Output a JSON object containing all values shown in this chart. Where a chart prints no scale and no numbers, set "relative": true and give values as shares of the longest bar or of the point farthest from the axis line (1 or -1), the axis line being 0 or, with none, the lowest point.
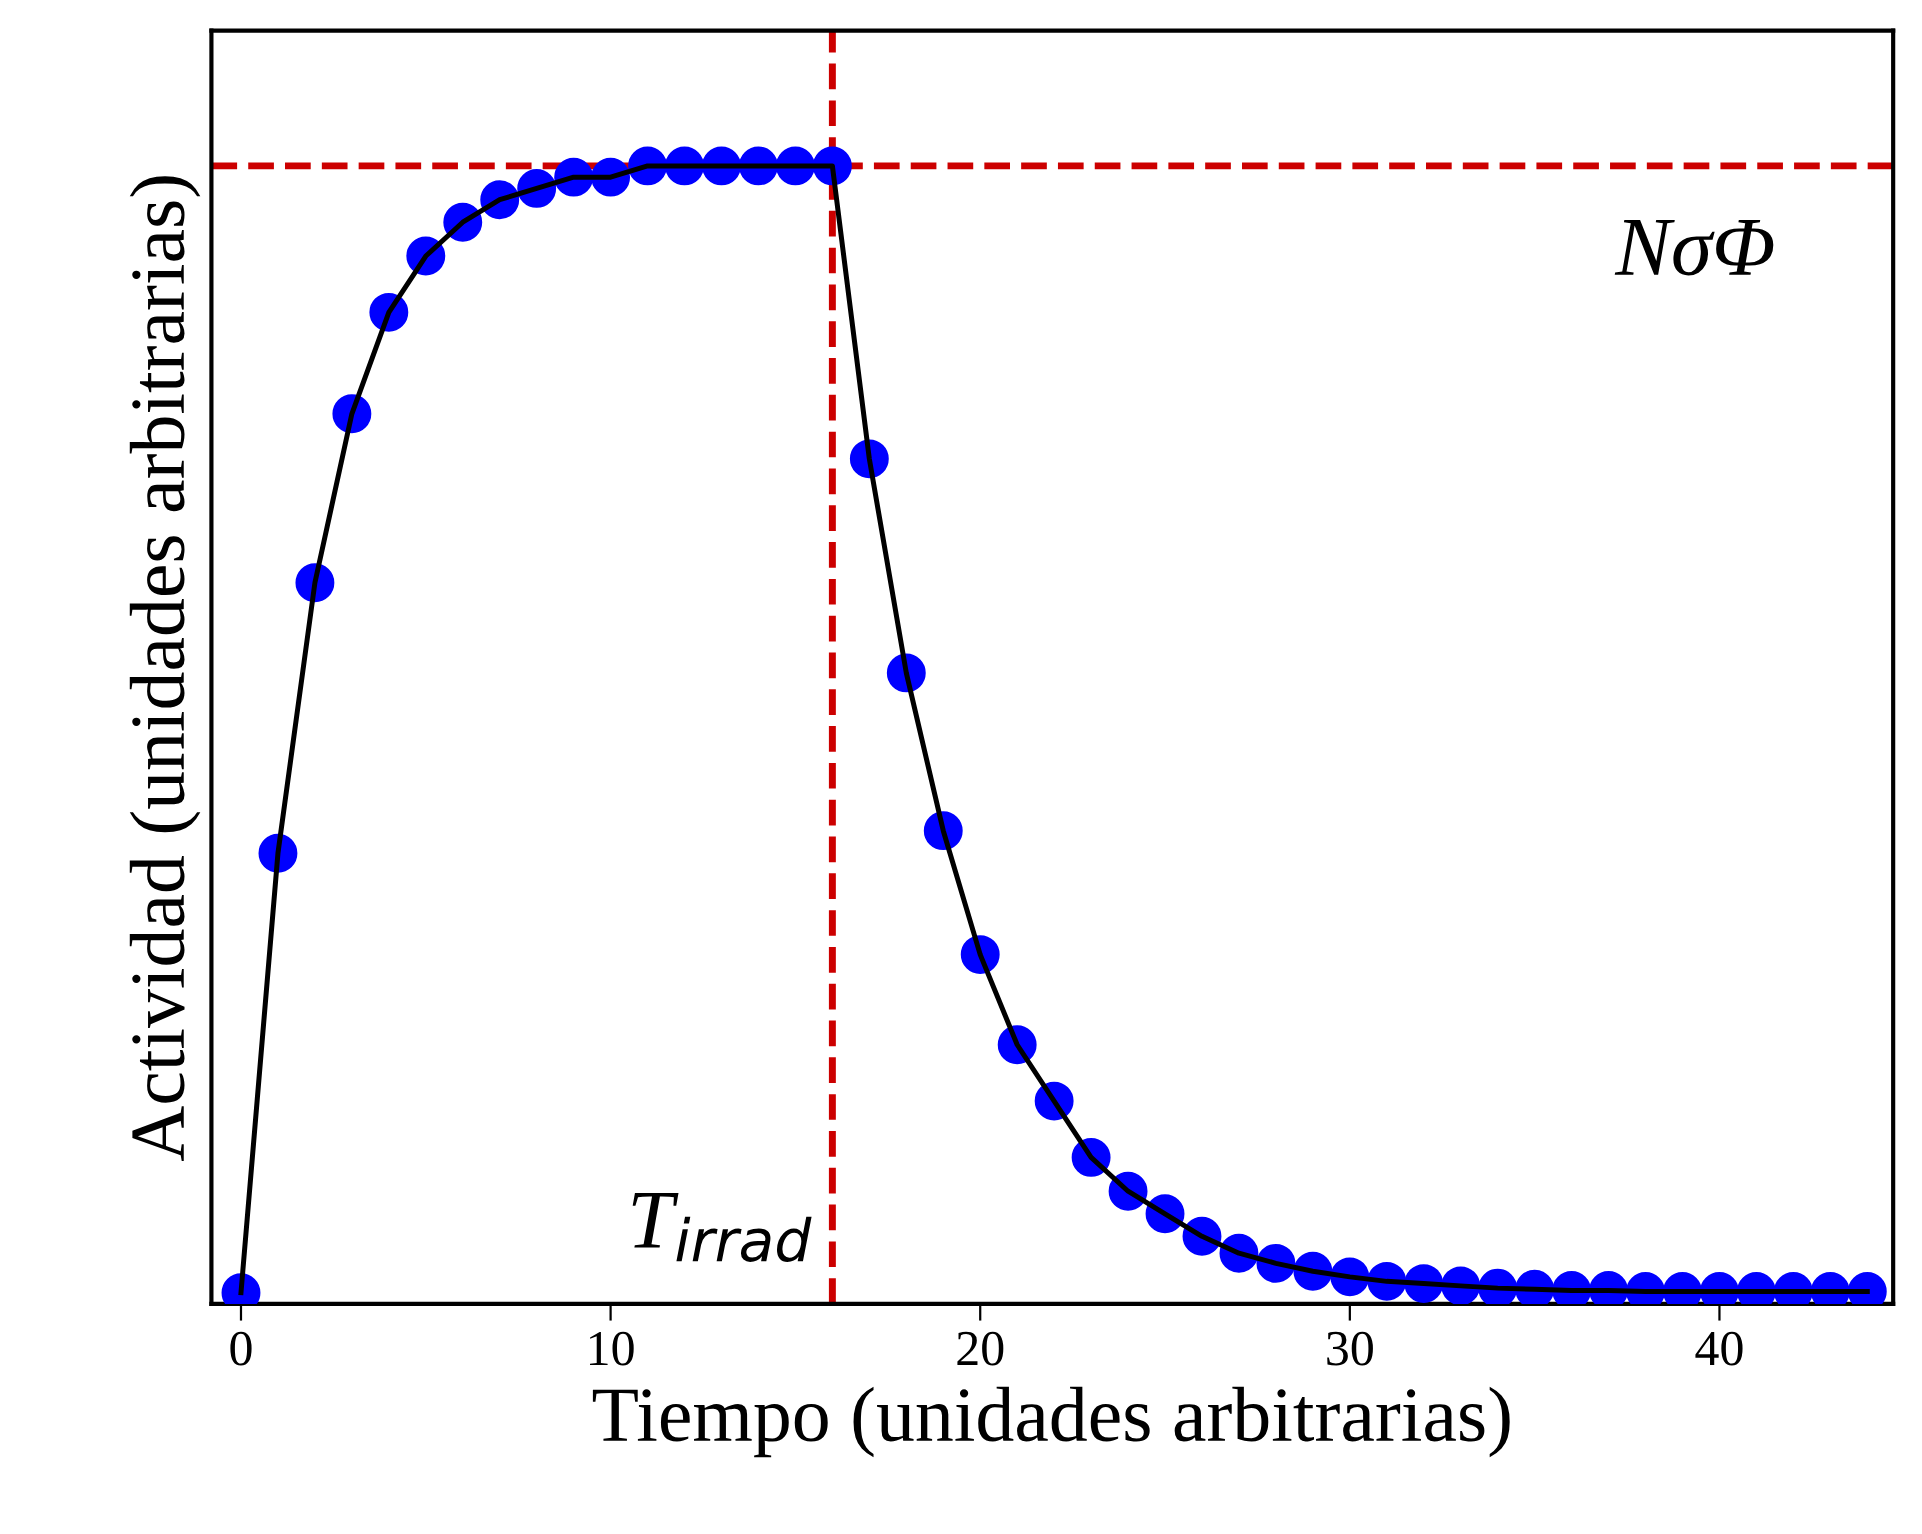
{
  "chart_data": {
    "type": "line",
    "relative": true,
    "xlabel": "Tiempo (unidades arbitrarias)",
    "ylabel": "Actividad (unidades arbitrarias)",
    "x": [
      0,
      1,
      2,
      3,
      4,
      5,
      6,
      7,
      8,
      9,
      10,
      11,
      12,
      13,
      14,
      15,
      16,
      17,
      18,
      19,
      20,
      21,
      22,
      23,
      24,
      25,
      26,
      27,
      28,
      29,
      30,
      31,
      32,
      33,
      34,
      35,
      36,
      37,
      38,
      39,
      40,
      41,
      42,
      43,
      44
    ],
    "xlim": [
      -0.8,
      44.7
    ],
    "xticks": [
      0,
      10,
      20,
      30,
      40
    ],
    "tick_labels": "x",
    "grid": false,
    "series": [
      {
        "color": "#0000ff",
        "marker": "circle",
        "line_style": "solid",
        "values": [
          0,
          0.39,
          0.63,
          0.78,
          0.87,
          0.92,
          0.95,
          0.97,
          0.98,
          0.99,
          0.99,
          1,
          1,
          1,
          1,
          1,
          1,
          0.74,
          0.55,
          0.41,
          0.3,
          0.22,
          0.17,
          0.12,
          0.09,
          0.07,
          0.05,
          0.035,
          0.026,
          0.019,
          0.014,
          0.01,
          0.008,
          0.006,
          0.004,
          0.003,
          0.002,
          0.002,
          0.001,
          0.001,
          0.001,
          0.001,
          0.001,
          0.001,
          0.001
        ]
      }
    ],
    "ref_lines": [
      {
        "axis": "y",
        "value": 1,
        "label": "NσΦ",
        "color": "#cc0000",
        "line_style": "dashed"
      },
      {
        "axis": "x",
        "value": 16,
        "label": "T$_{irrad}$",
        "color": "#cc0000",
        "line_style": "dashed"
      }
    ]
  }
}
